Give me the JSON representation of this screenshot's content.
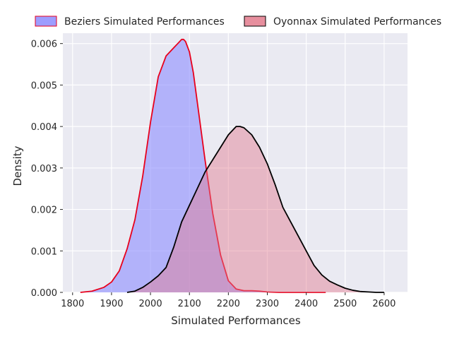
{
  "chart_data": {
    "type": "area",
    "xlabel": "Simulated Performances",
    "ylabel": "Density",
    "xlim": [
      1775,
      2660
    ],
    "ylim": [
      0,
      0.00625
    ],
    "xticks": [
      1800,
      1900,
      2000,
      2100,
      2200,
      2300,
      2400,
      2500,
      2600
    ],
    "yticks": [
      0.0,
      0.001,
      0.002,
      0.003,
      0.004,
      0.005,
      0.006
    ],
    "ytick_labels": [
      "0.000",
      "0.001",
      "0.002",
      "0.003",
      "0.004",
      "0.005",
      "0.006"
    ],
    "grid": true,
    "background": "#eaeaf2",
    "legend_position": "top",
    "series": [
      {
        "name": "Beziers Simulated Performances",
        "fill": "#8c8cff",
        "fill_opacity": 0.6,
        "stroke": "#e8001c",
        "x": [
          1820,
          1850,
          1880,
          1900,
          1920,
          1940,
          1960,
          1980,
          2000,
          2020,
          2040,
          2060,
          2070,
          2080,
          2085,
          2090,
          2100,
          2110,
          2120,
          2140,
          2160,
          2180,
          2200,
          2220,
          2240,
          2260,
          2280,
          2300,
          2330,
          2360,
          2400,
          2450
        ],
        "y": [
          0.0,
          3e-05,
          0.00012,
          0.00025,
          0.00052,
          0.00105,
          0.00175,
          0.0028,
          0.0041,
          0.0052,
          0.0057,
          0.0059,
          0.006,
          0.0061,
          0.0061,
          0.00605,
          0.0058,
          0.0053,
          0.0046,
          0.0032,
          0.0019,
          0.0009,
          0.00028,
          8e-05,
          4e-05,
          4e-05,
          3e-05,
          1e-05,
          0.0,
          0.0,
          0.0,
          0.0
        ]
      },
      {
        "name": "Oyonnax Simulated Performances",
        "fill": "#e37b8d",
        "fill_opacity": 0.45,
        "stroke": "#000000",
        "x": [
          1940,
          1960,
          1980,
          2000,
          2020,
          2040,
          2060,
          2080,
          2100,
          2120,
          2140,
          2160,
          2180,
          2200,
          2220,
          2230,
          2240,
          2260,
          2280,
          2300,
          2320,
          2340,
          2360,
          2380,
          2400,
          2420,
          2440,
          2460,
          2480,
          2500,
          2520,
          2540,
          2560,
          2580,
          2600
        ],
        "y": [
          0.0,
          3e-05,
          0.00012,
          0.00025,
          0.0004,
          0.0006,
          0.0011,
          0.0017,
          0.0021,
          0.0025,
          0.0029,
          0.0032,
          0.0035,
          0.0038,
          0.004,
          0.004,
          0.00397,
          0.0038,
          0.0035,
          0.0031,
          0.0026,
          0.00205,
          0.0017,
          0.00135,
          0.001,
          0.00065,
          0.00042,
          0.00027,
          0.00018,
          0.0001,
          5e-05,
          2e-05,
          1e-05,
          0.0,
          0.0
        ]
      }
    ]
  }
}
